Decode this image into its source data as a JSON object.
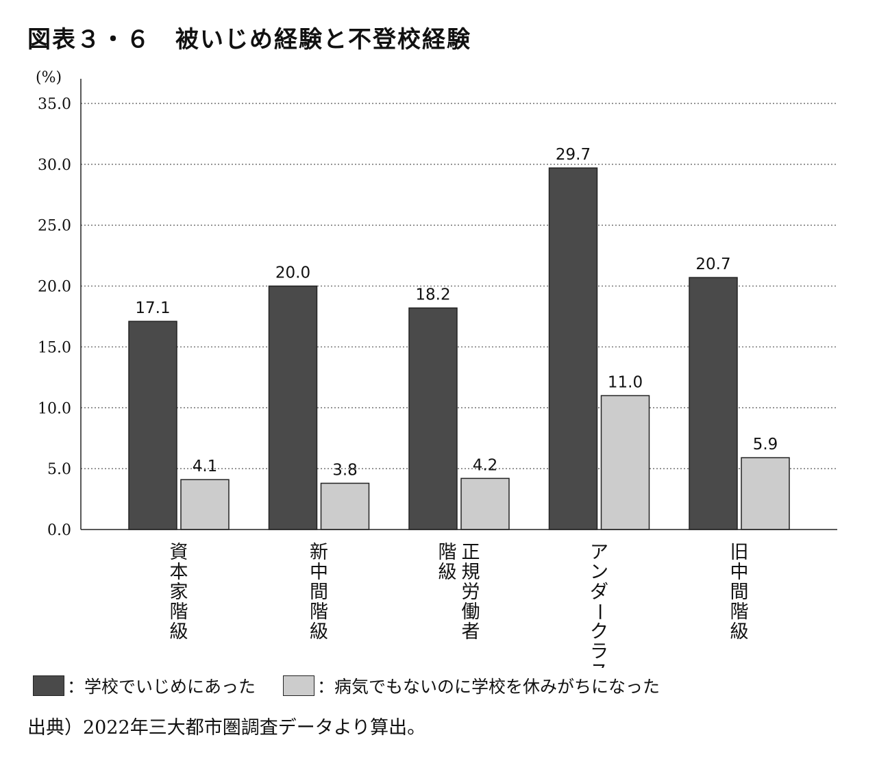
{
  "title": "図表３・６　被いじめ経験と不登校経験",
  "ylabel_unit": "(%)",
  "legend": [
    {
      "label": "：学校でいじめにあった",
      "color": "#4a4a4a"
    },
    {
      "label": "：病気でもないのに学校を休みがちになった",
      "color": "#cccccc"
    }
  ],
  "source": "出典）2022年三大都市圏調査データより算出。",
  "chart_data": {
    "type": "bar",
    "categories": [
      {
        "label": "資本家階級",
        "lines": [
          "資本家階級"
        ]
      },
      {
        "label": "新中間階級",
        "lines": [
          "新中間階級"
        ]
      },
      {
        "label": "正規労働者階級",
        "lines": [
          "正規労働者",
          "階級"
        ]
      },
      {
        "label": "アンダークラス",
        "lines": [
          "アンダークラス"
        ]
      },
      {
        "label": "旧中間階級",
        "lines": [
          "旧中間階級"
        ]
      }
    ],
    "series": [
      {
        "name": "学校でいじめにあった",
        "color": "#4a4a4a",
        "values": [
          17.1,
          20.0,
          18.2,
          29.7,
          20.7
        ]
      },
      {
        "name": "病気でもないのに学校を休みがちになった",
        "color": "#cccccc",
        "values": [
          4.1,
          3.8,
          4.2,
          11.0,
          5.9
        ]
      }
    ],
    "ylim": [
      0,
      35
    ],
    "yticks": [
      "0.0",
      "5.0",
      "10.0",
      "15.0",
      "20.0",
      "25.0",
      "30.0",
      "35.0"
    ],
    "grid": "dotted-horizontal"
  }
}
